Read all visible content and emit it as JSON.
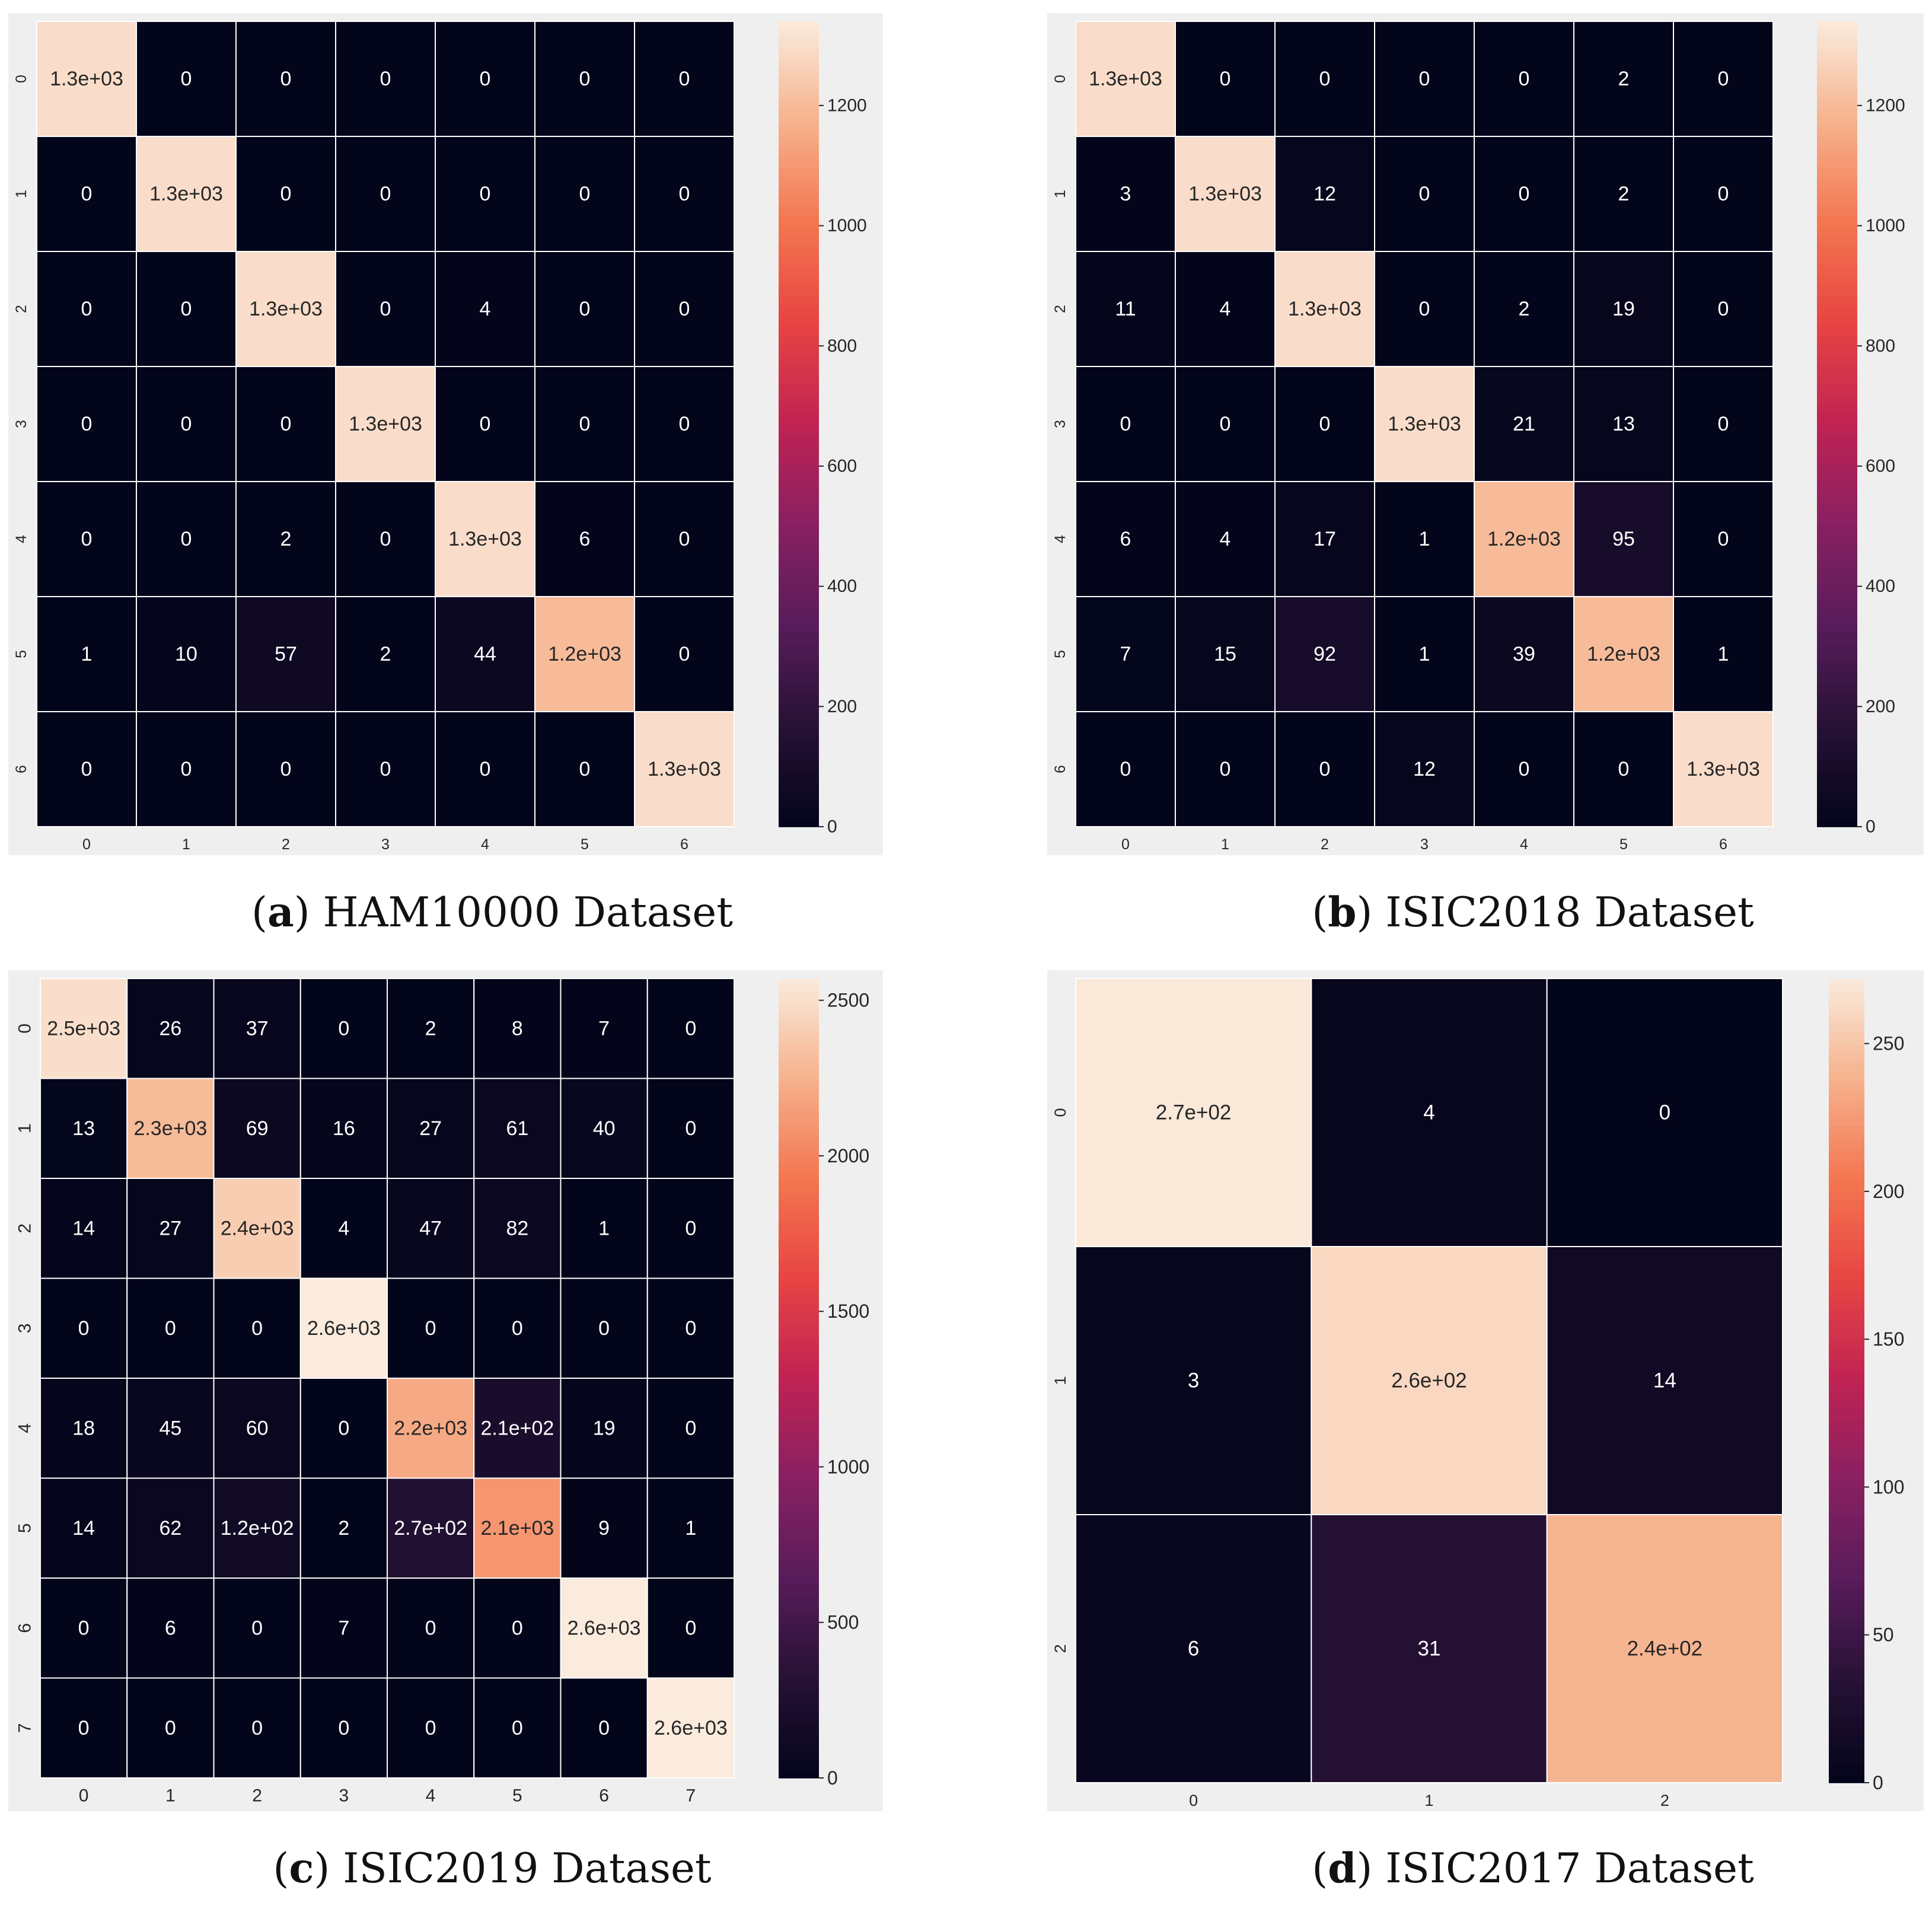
{
  "figure": {
    "panels": [
      {
        "letter": "a",
        "caption": "HAM10000 Dataset"
      },
      {
        "letter": "b",
        "caption": "ISIC2018 Dataset"
      },
      {
        "letter": "c",
        "caption": "ISIC2019 Dataset"
      },
      {
        "letter": "d",
        "caption": "ISIC2017 Dataset"
      }
    ]
  },
  "chart_data": [
    {
      "type": "heatmap",
      "title": "",
      "labels": [
        "0",
        "1",
        "2",
        "3",
        "4",
        "5",
        "6"
      ],
      "values": [
        [
          1300,
          0,
          0,
          0,
          0,
          0,
          0
        ],
        [
          0,
          1300,
          0,
          0,
          0,
          0,
          0
        ],
        [
          0,
          0,
          1300,
          0,
          4,
          0,
          0
        ],
        [
          0,
          0,
          0,
          1300,
          0,
          0,
          0
        ],
        [
          0,
          0,
          2,
          0,
          1300,
          6,
          0
        ],
        [
          1,
          10,
          57,
          2,
          44,
          1200,
          0
        ],
        [
          0,
          0,
          0,
          0,
          0,
          0,
          1300
        ]
      ],
      "annotations": [
        [
          "1.3e+03",
          "0",
          "0",
          "0",
          "0",
          "0",
          "0"
        ],
        [
          "0",
          "1.3e+03",
          "0",
          "0",
          "0",
          "0",
          "0"
        ],
        [
          "0",
          "0",
          "1.3e+03",
          "0",
          "4",
          "0",
          "0"
        ],
        [
          "0",
          "0",
          "0",
          "1.3e+03",
          "0",
          "0",
          "0"
        ],
        [
          "0",
          "0",
          "2",
          "0",
          "1.3e+03",
          "6",
          "0"
        ],
        [
          "1",
          "10",
          "57",
          "2",
          "44",
          "1.2e+03",
          "0"
        ],
        [
          "0",
          "0",
          "0",
          "0",
          "0",
          "0",
          "1.3e+03"
        ]
      ],
      "colorbar": {
        "range": [
          0,
          1340
        ],
        "ticks": [
          0,
          200,
          400,
          600,
          800,
          1000,
          1200
        ]
      }
    },
    {
      "type": "heatmap",
      "title": "",
      "labels": [
        "0",
        "1",
        "2",
        "3",
        "4",
        "5",
        "6"
      ],
      "values": [
        [
          1300,
          0,
          0,
          0,
          0,
          2,
          0
        ],
        [
          3,
          1300,
          12,
          0,
          0,
          2,
          0
        ],
        [
          11,
          4,
          1300,
          0,
          2,
          19,
          0
        ],
        [
          0,
          0,
          0,
          1300,
          21,
          13,
          0
        ],
        [
          6,
          4,
          17,
          1,
          1200,
          95,
          0
        ],
        [
          7,
          15,
          92,
          1,
          39,
          1200,
          1
        ],
        [
          0,
          0,
          0,
          12,
          0,
          0,
          1300
        ]
      ],
      "annotations": [
        [
          "1.3e+03",
          "0",
          "0",
          "0",
          "0",
          "2",
          "0"
        ],
        [
          "3",
          "1.3e+03",
          "12",
          "0",
          "0",
          "2",
          "0"
        ],
        [
          "11",
          "4",
          "1.3e+03",
          "0",
          "2",
          "19",
          "0"
        ],
        [
          "0",
          "0",
          "0",
          "1.3e+03",
          "21",
          "13",
          "0"
        ],
        [
          "6",
          "4",
          "17",
          "1",
          "1.2e+03",
          "95",
          "0"
        ],
        [
          "7",
          "15",
          "92",
          "1",
          "39",
          "1.2e+03",
          "1"
        ],
        [
          "0",
          "0",
          "0",
          "12",
          "0",
          "0",
          "1.3e+03"
        ]
      ],
      "colorbar": {
        "range": [
          0,
          1340
        ],
        "ticks": [
          0,
          200,
          400,
          600,
          800,
          1000,
          1200
        ]
      }
    },
    {
      "type": "heatmap",
      "title": "",
      "labels": [
        "0",
        "1",
        "2",
        "3",
        "4",
        "5",
        "6",
        "7"
      ],
      "values": [
        [
          2500,
          26,
          37,
          0,
          2,
          8,
          7,
          0
        ],
        [
          13,
          2300,
          69,
          16,
          27,
          61,
          40,
          0
        ],
        [
          14,
          27,
          2400,
          4,
          47,
          82,
          1,
          0
        ],
        [
          0,
          0,
          0,
          2600,
          0,
          0,
          0,
          0
        ],
        [
          18,
          45,
          60,
          0,
          2200,
          210,
          19,
          0
        ],
        [
          14,
          62,
          120,
          2,
          270,
          2100,
          9,
          1
        ],
        [
          0,
          6,
          0,
          7,
          0,
          0,
          2600,
          0
        ],
        [
          0,
          0,
          0,
          0,
          0,
          0,
          0,
          2600
        ]
      ],
      "annotations": [
        [
          "2.5e+03",
          "26",
          "37",
          "0",
          "2",
          "8",
          "7",
          "0"
        ],
        [
          "13",
          "2.3e+03",
          "69",
          "16",
          "27",
          "61",
          "40",
          "0"
        ],
        [
          "14",
          "27",
          "2.4e+03",
          "4",
          "47",
          "82",
          "1",
          "0"
        ],
        [
          "0",
          "0",
          "0",
          "2.6e+03",
          "0",
          "0",
          "0",
          "0"
        ],
        [
          "18",
          "45",
          "60",
          "0",
          "2.2e+03",
          "2.1e+02",
          "19",
          "0"
        ],
        [
          "14",
          "62",
          "1.2e+02",
          "2",
          "2.7e+02",
          "2.1e+03",
          "9",
          "1"
        ],
        [
          "0",
          "6",
          "0",
          "7",
          "0",
          "0",
          "2.6e+03",
          "0"
        ],
        [
          "0",
          "0",
          "0",
          "0",
          "0",
          "0",
          "0",
          "2.6e+03"
        ]
      ],
      "colorbar": {
        "range": [
          0,
          2570
        ],
        "ticks": [
          0,
          500,
          1000,
          1500,
          2000,
          2500
        ]
      }
    },
    {
      "type": "heatmap",
      "title": "",
      "labels": [
        "0",
        "1",
        "2"
      ],
      "values": [
        [
          270,
          4,
          0
        ],
        [
          3,
          260,
          14
        ],
        [
          6,
          31,
          240
        ]
      ],
      "annotations": [
        [
          "2.7e+02",
          "4",
          "0"
        ],
        [
          "3",
          "2.6e+02",
          "14"
        ],
        [
          "6",
          "31",
          "2.4e+02"
        ]
      ],
      "colorbar": {
        "range": [
          0,
          272
        ],
        "ticks": [
          0,
          50,
          100,
          150,
          200,
          250
        ]
      }
    }
  ]
}
